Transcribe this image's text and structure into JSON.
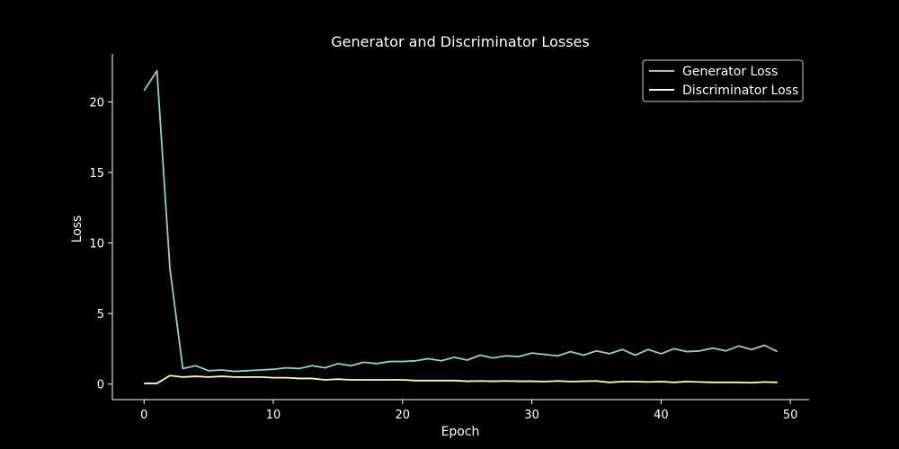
{
  "chart_data": {
    "type": "line",
    "title": "Generator and Discriminator Losses",
    "xlabel": "Epoch",
    "ylabel": "Loss",
    "xlim": [
      -2.45,
      51.45
    ],
    "ylim": [
      -1.1,
      23.4
    ],
    "xticks": [
      0,
      10,
      20,
      30,
      40,
      50
    ],
    "yticks": [
      0,
      5,
      10,
      15,
      20
    ],
    "grid": false,
    "legend_position": "top-right",
    "x": [
      0,
      1,
      2,
      3,
      4,
      5,
      6,
      7,
      8,
      9,
      10,
      11,
      12,
      13,
      14,
      15,
      16,
      17,
      18,
      19,
      20,
      21,
      22,
      23,
      24,
      25,
      26,
      27,
      28,
      29,
      30,
      31,
      32,
      33,
      34,
      35,
      36,
      37,
      38,
      39,
      40,
      41,
      42,
      43,
      44,
      45,
      46,
      47,
      48,
      49
    ],
    "series": [
      {
        "name": "Generator Loss",
        "color": "#8dd3c7",
        "values": [
          20.8,
          22.2,
          8.2,
          1.1,
          1.3,
          0.95,
          1.0,
          0.9,
          0.95,
          1.0,
          1.05,
          1.15,
          1.1,
          1.3,
          1.15,
          1.45,
          1.3,
          1.55,
          1.45,
          1.6,
          1.6,
          1.65,
          1.8,
          1.65,
          1.9,
          1.7,
          2.05,
          1.85,
          2.0,
          1.95,
          2.2,
          2.1,
          2.0,
          2.3,
          2.05,
          2.35,
          2.15,
          2.45,
          2.05,
          2.45,
          2.15,
          2.5,
          2.3,
          2.35,
          2.55,
          2.35,
          2.7,
          2.45,
          2.75,
          2.3
        ]
      },
      {
        "name": "Discriminator Loss",
        "color": "#ffffb3",
        "values": [
          0.05,
          0.05,
          0.6,
          0.5,
          0.55,
          0.5,
          0.55,
          0.5,
          0.5,
          0.5,
          0.45,
          0.45,
          0.4,
          0.4,
          0.3,
          0.35,
          0.3,
          0.3,
          0.3,
          0.3,
          0.3,
          0.25,
          0.25,
          0.25,
          0.25,
          0.2,
          0.22,
          0.2,
          0.22,
          0.2,
          0.2,
          0.18,
          0.22,
          0.18,
          0.2,
          0.22,
          0.12,
          0.18,
          0.18,
          0.15,
          0.18,
          0.12,
          0.18,
          0.15,
          0.12,
          0.12,
          0.12,
          0.1,
          0.15,
          0.12
        ]
      }
    ]
  }
}
